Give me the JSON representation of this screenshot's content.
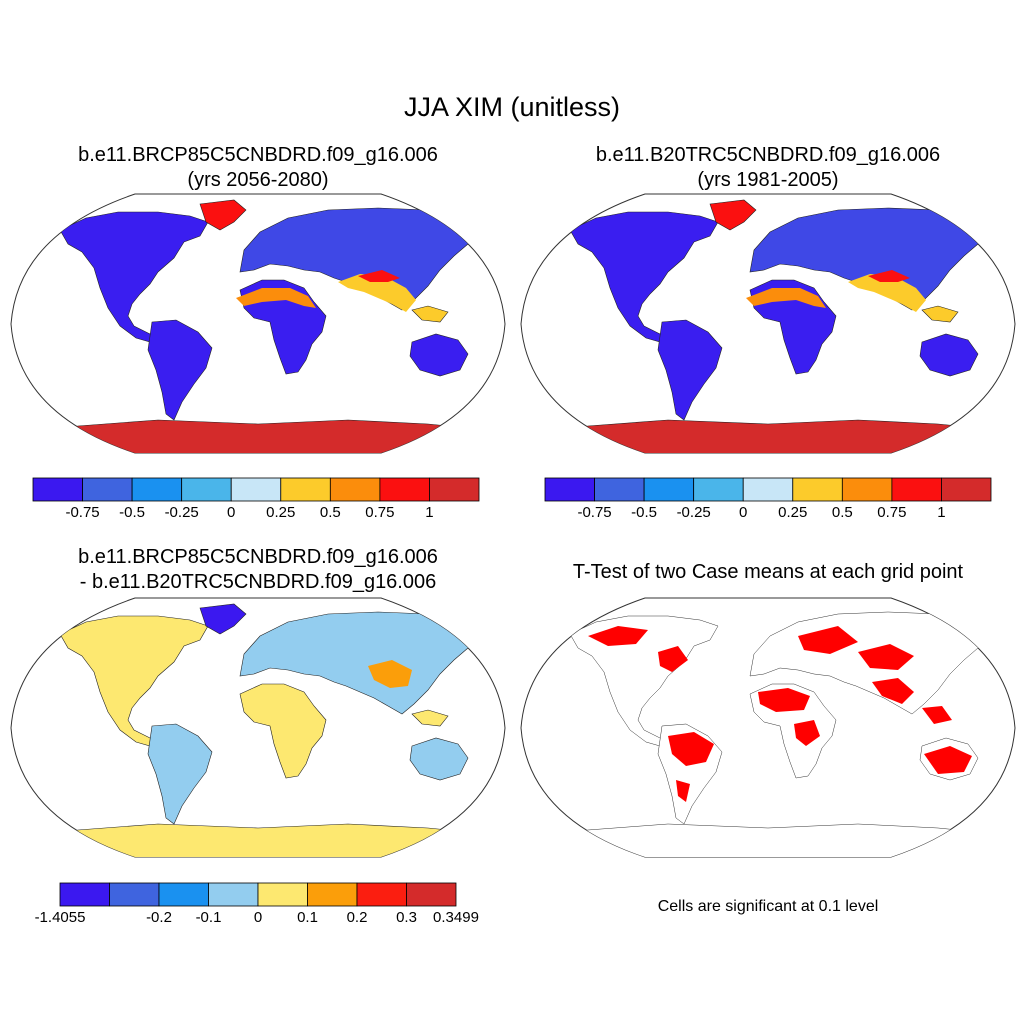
{
  "title": "JJA XIM (unitless)",
  "panels": [
    {
      "title_line1": "b.e11.BRCP85C5CNBDRD.f09_g16.006",
      "title_line2": "(yrs 2056-2080)"
    },
    {
      "title_line1": "b.e11.B20TRC5CNBDRD.f09_g16.006",
      "title_line2": "(yrs 1981-2005)"
    },
    {
      "title_line1": "b.e11.BRCP85C5CNBDRD.f09_g16.006",
      "title_line2": "- b.e11.B20TRC5CNBDRD.f09_g16.006"
    },
    {
      "title_line1": "T-Test of two Case means at each grid point",
      "note": "Cells are significant at 0.1 level"
    }
  ],
  "colorbars": {
    "absolute": {
      "colors": [
        "#3b18f0",
        "#3f64df",
        "#1a91f0",
        "#4ab5ea",
        "#c8e6f7",
        "#fccb2b",
        "#fb8d0c",
        "#fb1010",
        "#d42b2b"
      ],
      "labels": [
        "-0.75",
        "-0.5",
        "-0.25",
        "0",
        "0.25",
        "0.5",
        "0.75",
        "1"
      ]
    },
    "difference": {
      "colors": [
        "#3b18f0",
        "#3f64df",
        "#1a91f0",
        "#93cdef",
        "#fde870",
        "#fb9e0a",
        "#fb1e10",
        "#d42b2b"
      ],
      "labels": [
        "-1.4055",
        "-0.2",
        "-0.1",
        "0",
        "0.1",
        "0.2",
        "0.3",
        "0.3499"
      ]
    }
  },
  "map_colors": {
    "land_cold": "#3a1ef0",
    "land_mid": "#3f64df",
    "land_cool": "#4ab5ea",
    "land_hot": "#fccb2b",
    "land_warm": "#fb8d0c",
    "antarctica": "#d42b2b",
    "diff_base": "#93cdef",
    "diff_yellow": "#fde870",
    "sig_red": "#ff0000"
  }
}
